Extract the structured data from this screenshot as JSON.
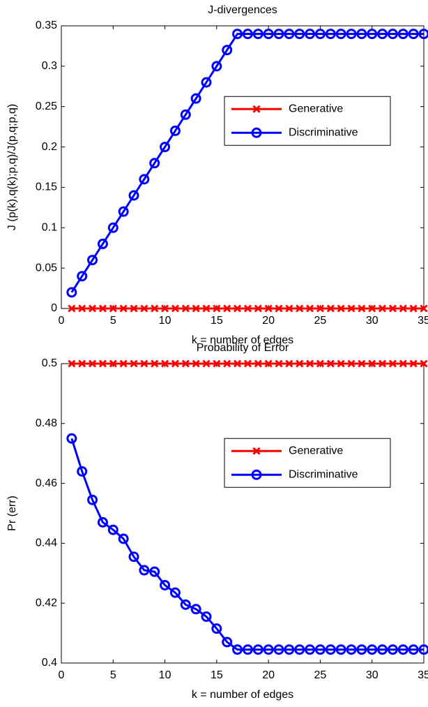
{
  "chart_data": [
    {
      "type": "line",
      "title": "J-divergences",
      "xlabel": "k = number of edges",
      "ylabel": "J (p(k),q(k);p,q)/J(p,q;p,q)",
      "x": [
        1,
        2,
        3,
        4,
        5,
        6,
        7,
        8,
        9,
        10,
        11,
        12,
        13,
        14,
        15,
        16,
        17,
        18,
        19,
        20,
        21,
        22,
        23,
        24,
        25,
        26,
        27,
        28,
        29,
        30,
        31,
        32,
        33,
        34,
        35
      ],
      "series": [
        {
          "name": "Generative",
          "color": "#ff0000",
          "marker": "x",
          "values": [
            0,
            0,
            0,
            0,
            0,
            0,
            0,
            0,
            0,
            0,
            0,
            0,
            0,
            0,
            0,
            0,
            0,
            0,
            0,
            0,
            0,
            0,
            0,
            0,
            0,
            0,
            0,
            0,
            0,
            0,
            0,
            0,
            0,
            0,
            0
          ]
        },
        {
          "name": "Discriminative",
          "color": "#0000ff",
          "marker": "o",
          "values": [
            0.02,
            0.04,
            0.06,
            0.08,
            0.1,
            0.12,
            0.14,
            0.16,
            0.18,
            0.2,
            0.22,
            0.24,
            0.26,
            0.28,
            0.3,
            0.32,
            0.34,
            0.34,
            0.34,
            0.34,
            0.34,
            0.34,
            0.34,
            0.34,
            0.34,
            0.34,
            0.34,
            0.34,
            0.34,
            0.34,
            0.34,
            0.34,
            0.34,
            0.34,
            0.34
          ]
        }
      ],
      "xlim": [
        0,
        35
      ],
      "xticks": [
        0,
        5,
        10,
        15,
        20,
        25,
        30,
        35
      ],
      "ylim": [
        0,
        0.35
      ],
      "yticks": [
        0,
        0.05,
        0.1,
        0.15,
        0.2,
        0.25,
        0.3,
        0.35
      ],
      "legend": "center right"
    },
    {
      "type": "line",
      "title": "Probability of Error",
      "xlabel": "k = number of edges",
      "ylabel": "Pr (err)",
      "x": [
        1,
        2,
        3,
        4,
        5,
        6,
        7,
        8,
        9,
        10,
        11,
        12,
        13,
        14,
        15,
        16,
        17,
        18,
        19,
        20,
        21,
        22,
        23,
        24,
        25,
        26,
        27,
        28,
        29,
        30,
        31,
        32,
        33,
        34,
        35
      ],
      "series": [
        {
          "name": "Generative",
          "color": "#ff0000",
          "marker": "x",
          "values": [
            0.5,
            0.5,
            0.5,
            0.5,
            0.5,
            0.5,
            0.5,
            0.5,
            0.5,
            0.5,
            0.5,
            0.5,
            0.5,
            0.5,
            0.5,
            0.5,
            0.5,
            0.5,
            0.5,
            0.5,
            0.5,
            0.5,
            0.5,
            0.5,
            0.5,
            0.5,
            0.5,
            0.5,
            0.5,
            0.5,
            0.5,
            0.5,
            0.5,
            0.5,
            0.5
          ]
        },
        {
          "name": "Discriminative",
          "color": "#0000ff",
          "marker": "o",
          "values": [
            0.475,
            0.464,
            0.4545,
            0.447,
            0.4445,
            0.4415,
            0.4355,
            0.431,
            0.4305,
            0.426,
            0.4235,
            0.4195,
            0.418,
            0.4155,
            0.4115,
            0.407,
            0.4045,
            0.4045,
            0.4045,
            0.4045,
            0.4045,
            0.4045,
            0.4045,
            0.4045,
            0.4045,
            0.4045,
            0.4045,
            0.4045,
            0.4045,
            0.4045,
            0.4045,
            0.4045,
            0.4045,
            0.4045,
            0.4045
          ]
        }
      ],
      "xlim": [
        0,
        35
      ],
      "xticks": [
        0,
        5,
        10,
        15,
        20,
        25,
        30,
        35
      ],
      "ylim": [
        0.4,
        0.5
      ],
      "yticks": [
        0.4,
        0.42,
        0.44,
        0.46,
        0.48,
        0.5
      ],
      "legend": "center right"
    }
  ]
}
